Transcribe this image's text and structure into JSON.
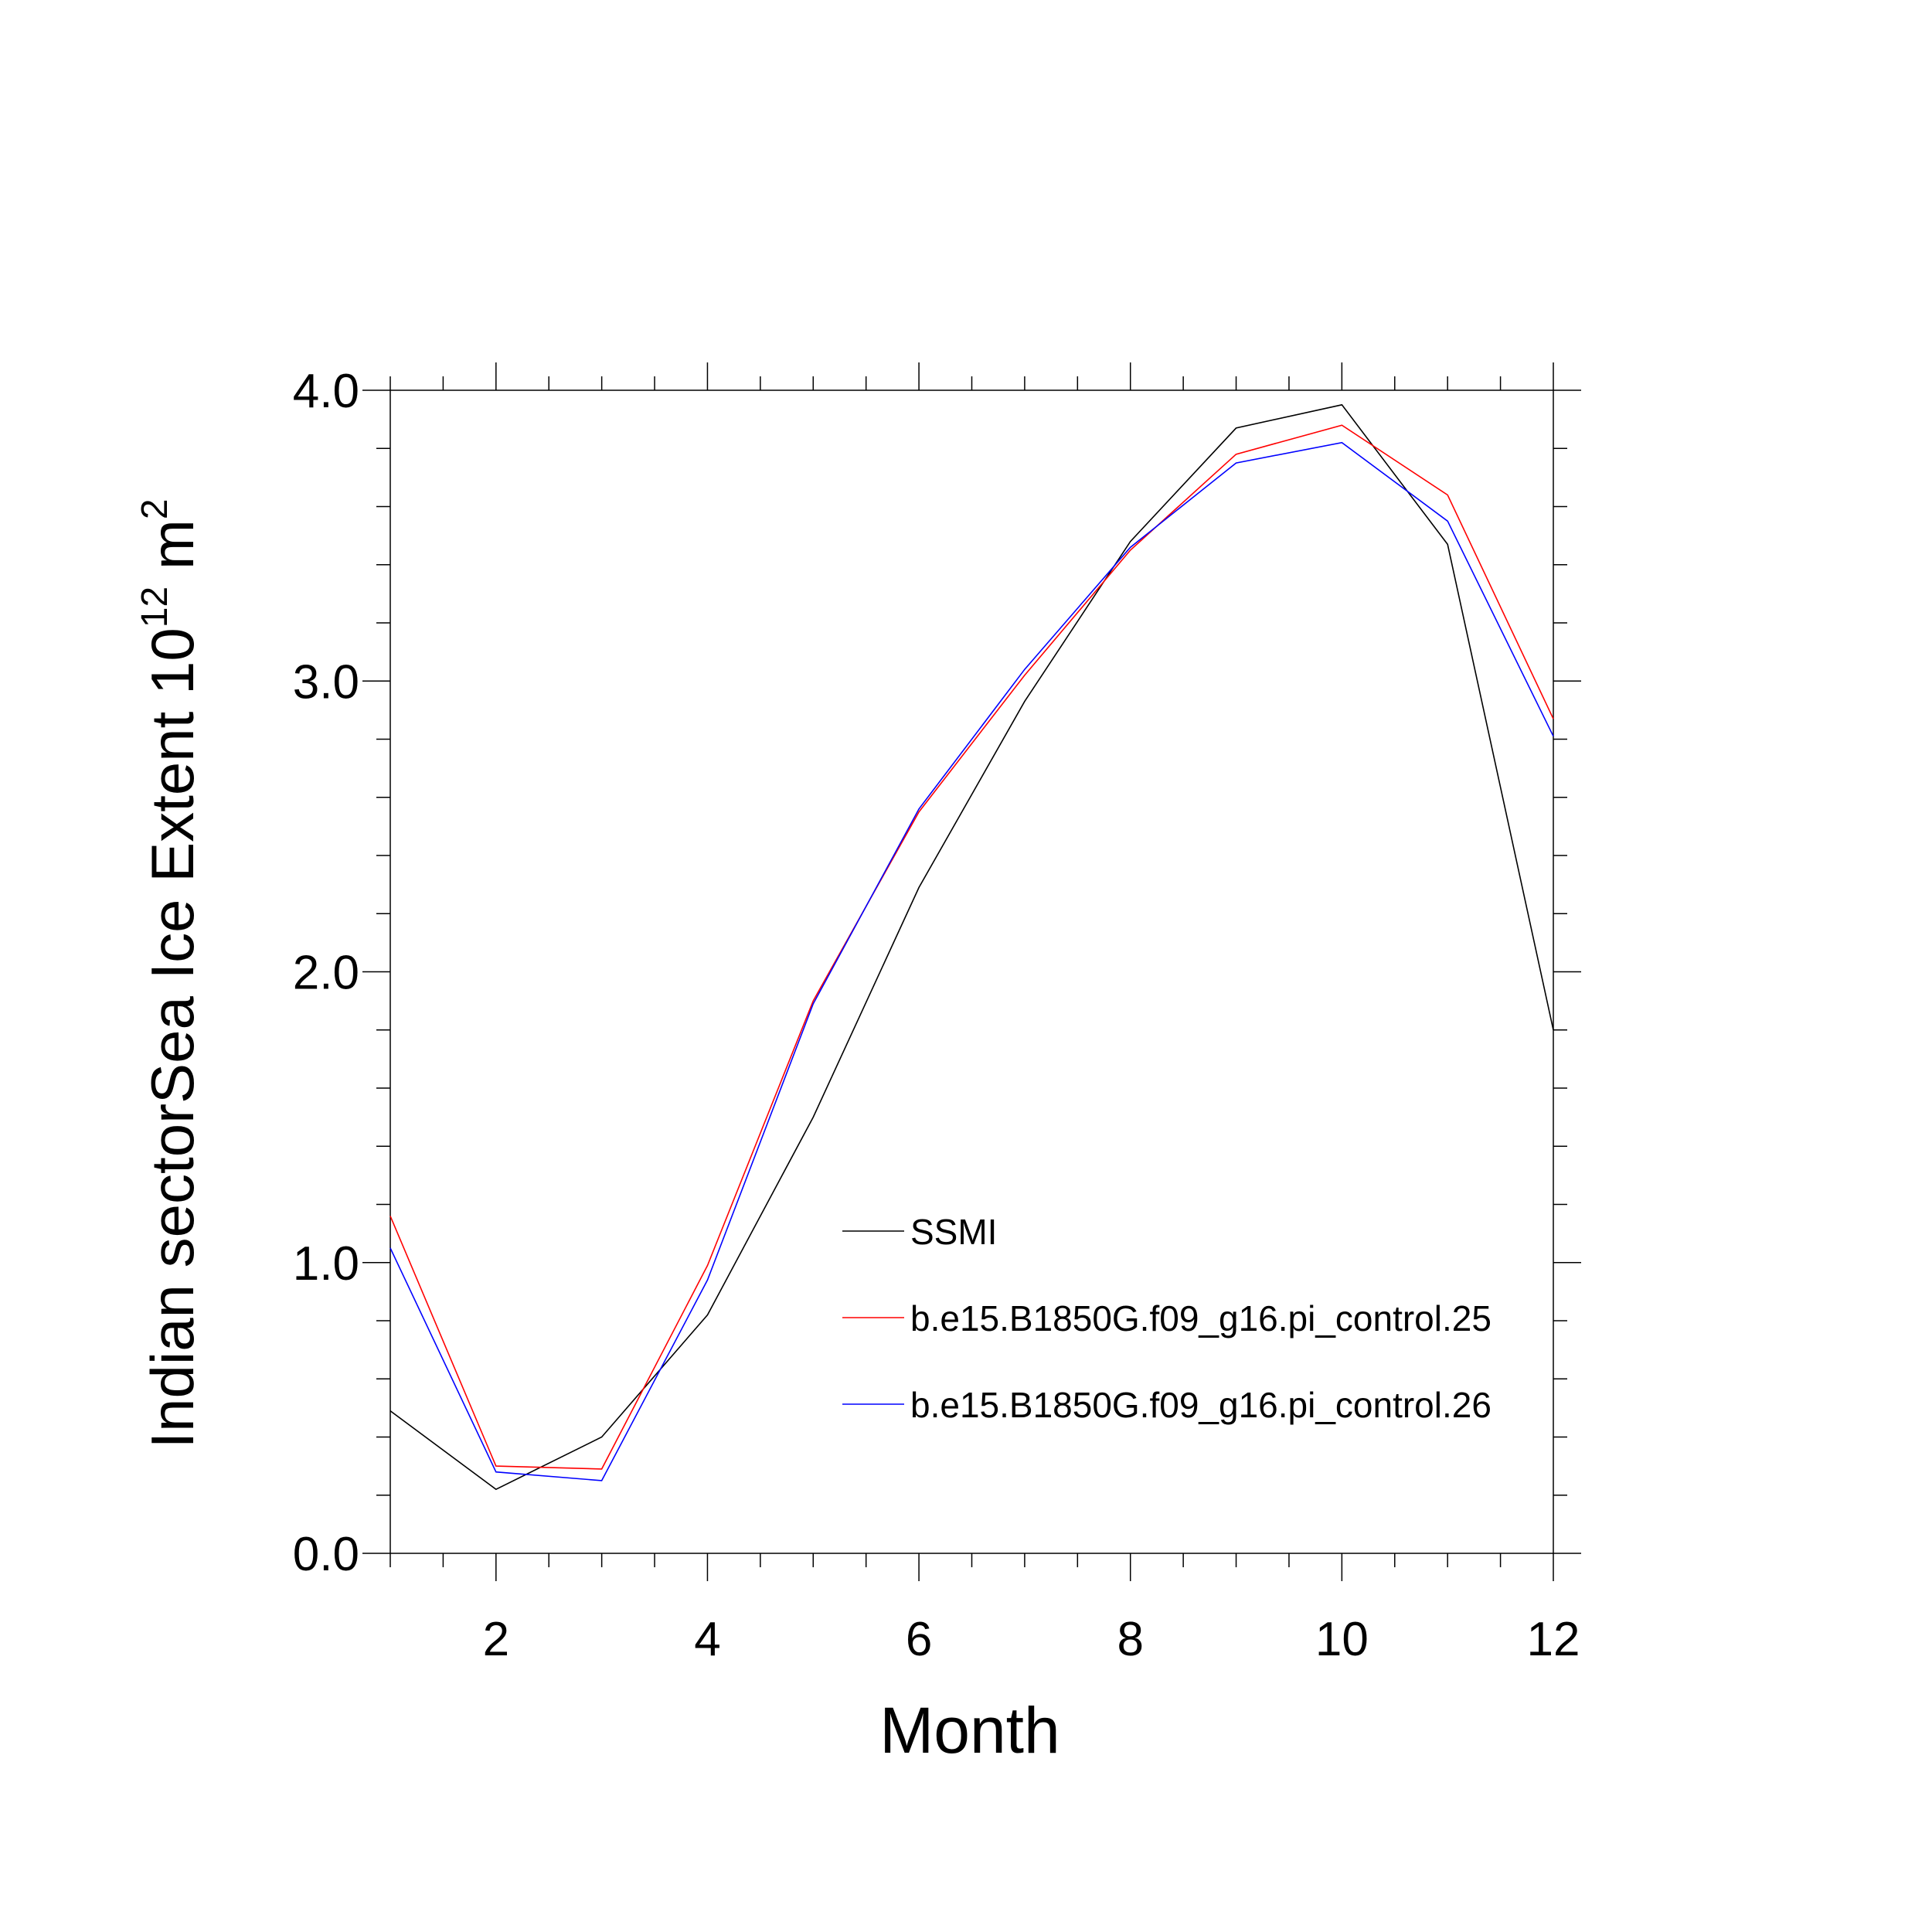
{
  "chart_data": {
    "type": "line",
    "xlabel": "Month",
    "ylabel": "Indian sectorSea Ice Extent 10",
    "ylabel_exp": "12",
    "ylabel_unit": " m",
    "ylabel_unit_exp": "2",
    "xlim": [
      1,
      12
    ],
    "ylim": [
      0.0,
      4.0
    ],
    "x_ticks": [
      2,
      4,
      6,
      8,
      10,
      12
    ],
    "y_ticks": [
      0.0,
      1.0,
      2.0,
      3.0,
      4.0
    ],
    "y_tick_labels": [
      "0.0",
      "1.0",
      "2.0",
      "3.0",
      "4.0"
    ],
    "grid": false,
    "legend_position": "bottom-right",
    "x": [
      1,
      2,
      3,
      4,
      5,
      6,
      7,
      8,
      9,
      10,
      11,
      12
    ],
    "series": [
      {
        "name": "SSMI",
        "color": "#000000",
        "values": [
          0.49,
          0.22,
          0.4,
          0.82,
          1.5,
          2.29,
          2.93,
          3.48,
          3.87,
          3.95,
          3.47,
          1.8
        ]
      },
      {
        "name": "b.e15.B1850G.f09_g16.pi_control.25",
        "color": "#ff0000",
        "values": [
          1.16,
          0.3,
          0.29,
          0.99,
          1.9,
          2.55,
          3.02,
          3.45,
          3.78,
          3.88,
          3.64,
          2.87
        ]
      },
      {
        "name": "b.e15.B1850G.f09_g16.pi_control.26",
        "color": "#0000ff",
        "values": [
          1.05,
          0.28,
          0.25,
          0.94,
          1.89,
          2.56,
          3.04,
          3.46,
          3.75,
          3.82,
          3.55,
          2.81
        ]
      }
    ]
  }
}
